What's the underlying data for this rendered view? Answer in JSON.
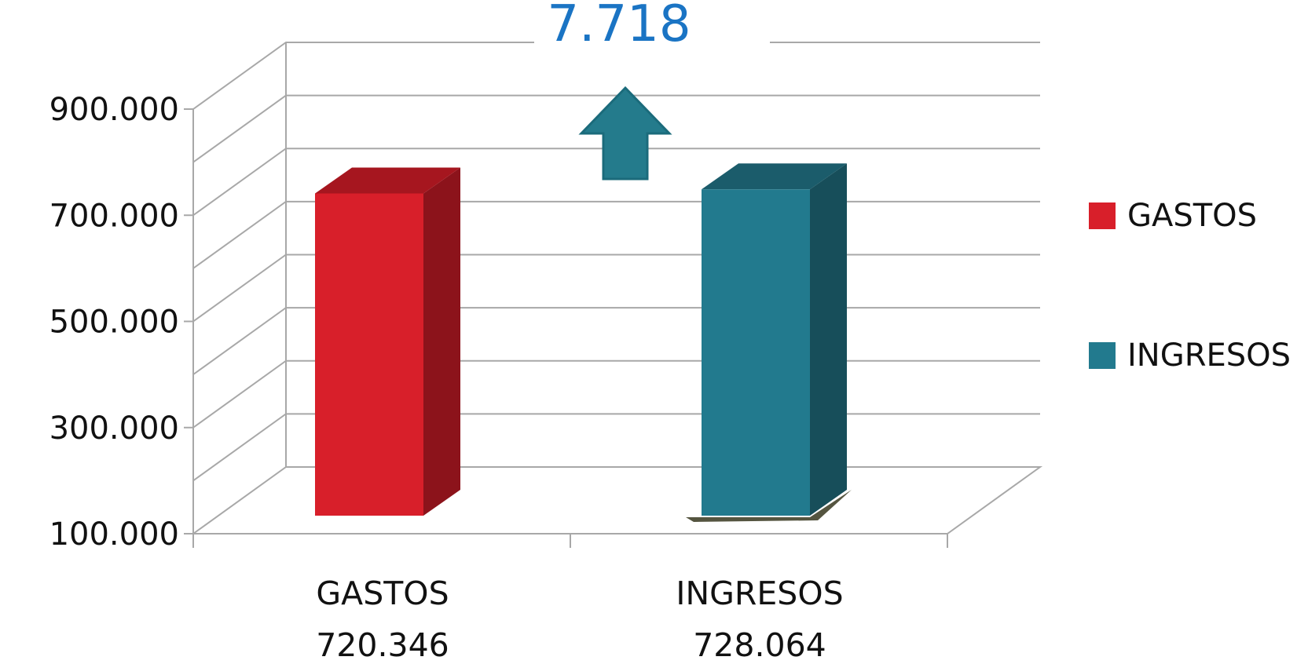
{
  "chart_data": {
    "type": "bar",
    "categories": [
      "GASTOS",
      "INGRESOS"
    ],
    "category_value_labels": [
      "720.346",
      "728.064"
    ],
    "values": [
      720346,
      728064
    ],
    "ylim": [
      100000,
      900000
    ],
    "yticks": [
      100000,
      300000,
      500000,
      700000,
      900000
    ],
    "ytick_labels": [
      "100.000",
      "300.000",
      "500.000",
      "700.000",
      "900.000"
    ],
    "legend": [
      "GASTOS",
      "INGRESOS"
    ],
    "legend_position": "right",
    "colors": [
      "#d81f2a",
      "#227a8e"
    ],
    "difference_label": "7.718",
    "difference_direction": "up",
    "grid": true,
    "three_d": true
  }
}
